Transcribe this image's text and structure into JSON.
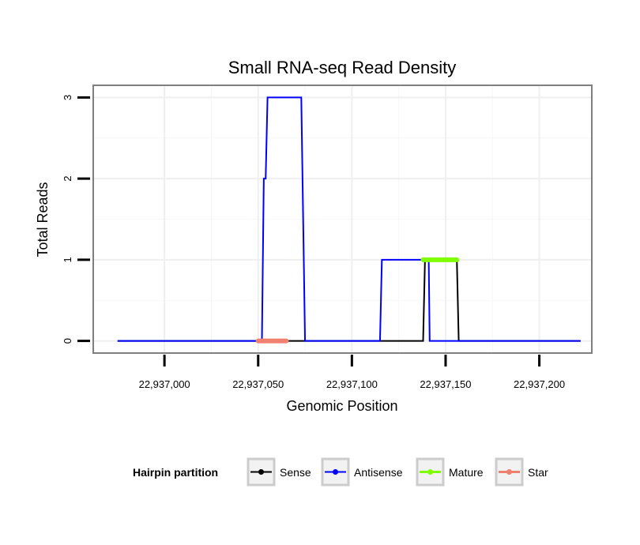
{
  "chart_data": {
    "type": "line",
    "title": "Small RNA-seq Read Density",
    "xlabel": "Genomic Position",
    "ylabel": "Total Reads",
    "xlim": [
      22936962,
      22937228
    ],
    "ylim": [
      -0.15,
      3.15
    ],
    "x_ticks": [
      22937000,
      22937050,
      22937100,
      22937150,
      22937200
    ],
    "x_tick_labels": [
      "22,937,000",
      "22,937,050",
      "22,937,100",
      "22,937,150",
      "22,937,200"
    ],
    "y_ticks": [
      0,
      1,
      2,
      3
    ],
    "y_tick_labels": [
      "0",
      "1",
      "2",
      "3"
    ],
    "grid": true,
    "legend": {
      "title": "Hairpin partition",
      "position": "bottom",
      "entries": [
        "Sense",
        "Antisense",
        "Mature",
        "Star"
      ]
    },
    "series": [
      {
        "name": "Sense",
        "color": "#000000",
        "points": [
          [
            22936975,
            0
          ],
          [
            22937138,
            0
          ],
          [
            22937139,
            1
          ],
          [
            22937156,
            1
          ],
          [
            22937157,
            0
          ],
          [
            22937222,
            0
          ]
        ]
      },
      {
        "name": "Antisense",
        "color": "#0000ff",
        "points": [
          [
            22936975,
            0
          ],
          [
            22937052,
            0
          ],
          [
            22937053,
            2
          ],
          [
            22937054,
            2
          ],
          [
            22937055,
            3
          ],
          [
            22937073,
            3
          ],
          [
            22937075,
            0
          ],
          [
            22937115,
            0
          ],
          [
            22937116,
            1
          ],
          [
            22937141,
            1
          ],
          [
            22937141.5,
            0
          ],
          [
            22937222,
            0
          ]
        ]
      },
      {
        "name": "Mature",
        "color": "#7fff00",
        "points": [
          [
            22937138,
            1
          ],
          [
            22937156,
            1
          ]
        ]
      },
      {
        "name": "Star",
        "color": "#f08070",
        "points": [
          [
            22937050,
            0
          ],
          [
            22937065,
            0
          ]
        ]
      }
    ]
  }
}
